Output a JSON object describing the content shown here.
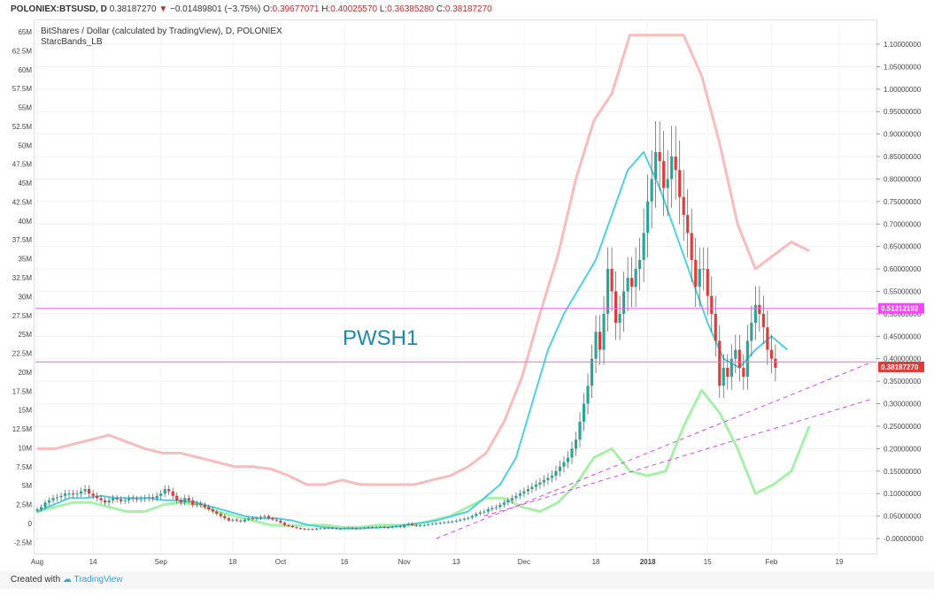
{
  "header": {
    "symbol": "POLONIEX:BTSUSD, D",
    "last": "0.38187270",
    "change": "−0.01489801 (−3.75%)",
    "open_label": "O:",
    "open": "0.39677071",
    "high_label": "H:",
    "high": "0.40025570",
    "low_label": "L:",
    "low": "0.36385280",
    "close_label": "C:",
    "close": "0.38187270"
  },
  "legend": {
    "title": "BitShares / Dollar (calculated by TradingView), D, POLONIEX",
    "indicator": "StarcBands_LB"
  },
  "annotation": "PWSH1",
  "footer": {
    "created_with": "Created with",
    "brand": "TradingView"
  },
  "colors": {
    "up": "#26a69a",
    "down": "#e53935",
    "upper_band": "#f8bcbc",
    "lower_band": "#a7f0a7",
    "center": "#4dd0e1",
    "hline": "#f264f2",
    "trend": "#e040fb",
    "badge_magenta": "#ff40ff",
    "badge_red": "#e53935"
  },
  "chart_data": {
    "type": "candlestick",
    "price_axis_ticks": [
      "1.10000000",
      "1.05000000",
      "1.00000000",
      "0.95000000",
      "0.90000000",
      "0.85000000",
      "0.80000000",
      "0.75000000",
      "0.70000000",
      "0.65000000",
      "0.60000000",
      "0.55000000",
      "0.50000000",
      "0.45000000",
      "0.40000000",
      "0.35000000",
      "0.30000000",
      "0.25000000",
      "0.20000000",
      "0.15000000",
      "0.10000000",
      "0.05000000",
      "-0.00000000"
    ],
    "price_axis_values": [
      1.1,
      1.05,
      1.0,
      0.95,
      0.9,
      0.85,
      0.8,
      0.75,
      0.7,
      0.65,
      0.6,
      0.55,
      0.5,
      0.45,
      0.4,
      0.35,
      0.3,
      0.25,
      0.2,
      0.15,
      0.1,
      0.05,
      0.0
    ],
    "volume_axis_ticks": [
      "65M",
      "62.5M",
      "60M",
      "57.5M",
      "55M",
      "52.5M",
      "50M",
      "47.5M",
      "45M",
      "42.5M",
      "40M",
      "37.5M",
      "35M",
      "32.5M",
      "30M",
      "27.5M",
      "25M",
      "22.5M",
      "20M",
      "17.5M",
      "15M",
      "12.5M",
      "10M",
      "7.5M",
      "5M",
      "2.5M",
      "0",
      "-2.5M"
    ],
    "volume_axis_values": [
      65,
      62.5,
      60,
      57.5,
      55,
      52.5,
      50,
      47.5,
      45,
      42.5,
      40,
      37.5,
      35,
      32.5,
      30,
      27.5,
      25,
      22.5,
      20,
      17.5,
      15,
      12.5,
      10,
      7.5,
      5,
      2.5,
      0,
      -2.5
    ],
    "time_axis": [
      "Aug",
      "14",
      "Sep",
      "18",
      "Oct",
      "16",
      "Nov",
      "13",
      "Dec",
      "18",
      "2018",
      "15",
      "Feb",
      "19"
    ],
    "time_axis_days": [
      0,
      14,
      31,
      49,
      61,
      77,
      92,
      105,
      122,
      140,
      153,
      168,
      184,
      201
    ],
    "price_badges": [
      {
        "label": "0.51212192",
        "value": 0.51212192
      },
      {
        "label": "0.38187270",
        "value": 0.3818727
      }
    ],
    "horizontal_lines": [
      0.512,
      0.393
    ],
    "trendlines": [
      {
        "from": [
          100,
          0.0
        ],
        "to": [
          209,
          0.392
        ]
      },
      {
        "from": [
          112,
          0.05
        ],
        "to": [
          209,
          0.31
        ]
      }
    ],
    "close_series": {
      "start_day": 0,
      "values": [
        0.065,
        0.07,
        0.08,
        0.085,
        0.09,
        0.092,
        0.095,
        0.1,
        0.1,
        0.098,
        0.1,
        0.105,
        0.11,
        0.1,
        0.095,
        0.09,
        0.085,
        0.08,
        0.085,
        0.09,
        0.087,
        0.083,
        0.085,
        0.09,
        0.088,
        0.087,
        0.088,
        0.09,
        0.092,
        0.09,
        0.095,
        0.1,
        0.11,
        0.105,
        0.095,
        0.085,
        0.08,
        0.09,
        0.085,
        0.075,
        0.078,
        0.075,
        0.07,
        0.065,
        0.06,
        0.055,
        0.05,
        0.045,
        0.04,
        0.042,
        0.04,
        0.038,
        0.042,
        0.045,
        0.043,
        0.045,
        0.048,
        0.05,
        0.045,
        0.042,
        0.04,
        0.035,
        0.03,
        0.028,
        0.025,
        0.023,
        0.022,
        0.02,
        0.021,
        0.02,
        0.022,
        0.023,
        0.022,
        0.024,
        0.023,
        0.022,
        0.022,
        0.023,
        0.024,
        0.023,
        0.022,
        0.023,
        0.024,
        0.025,
        0.024,
        0.025,
        0.026,
        0.025,
        0.024,
        0.026,
        0.027,
        0.025,
        0.03,
        0.033,
        0.03,
        0.028,
        0.029,
        0.03,
        0.032,
        0.033,
        0.034,
        0.035,
        0.036,
        0.037,
        0.038,
        0.04,
        0.042,
        0.044,
        0.046,
        0.05,
        0.055,
        0.058,
        0.06,
        0.065,
        0.068,
        0.07,
        0.075,
        0.08,
        0.085,
        0.09,
        0.095,
        0.1,
        0.105,
        0.11,
        0.115,
        0.12,
        0.125,
        0.13,
        0.135,
        0.14,
        0.15,
        0.16,
        0.17,
        0.18,
        0.2,
        0.22,
        0.26,
        0.3,
        0.34,
        0.4,
        0.46,
        0.42,
        0.5,
        0.6,
        0.55,
        0.48,
        0.5,
        0.55,
        0.58,
        0.56,
        0.6,
        0.62,
        0.68,
        0.75,
        0.8,
        0.86,
        0.84,
        0.78,
        0.8,
        0.85,
        0.82,
        0.76,
        0.72,
        0.68,
        0.62,
        0.56,
        0.6,
        0.6,
        0.54,
        0.5,
        0.44,
        0.34,
        0.38,
        0.36,
        0.4,
        0.42,
        0.38,
        0.36,
        0.44,
        0.48,
        0.52,
        0.5,
        0.47,
        0.42,
        0.4,
        0.38
      ]
    },
    "center_line": {
      "start_day": 0,
      "values": [
        0.06,
        0.075,
        0.09,
        0.09,
        0.095,
        0.09,
        0.09,
        0.09,
        0.085,
        0.085,
        0.08,
        0.07,
        0.06,
        0.05,
        0.045,
        0.045,
        0.04,
        0.03,
        0.025,
        0.022,
        0.022,
        0.024,
        0.025,
        0.03,
        0.035,
        0.04,
        0.05,
        0.06,
        0.09,
        0.12,
        0.18,
        0.3,
        0.42,
        0.5,
        0.56,
        0.62,
        0.72,
        0.82,
        0.86,
        0.78,
        0.68,
        0.58,
        0.48,
        0.4,
        0.38,
        0.42,
        0.45,
        0.42
      ],
      "step_days": 4
    },
    "upper_band": {
      "start_day": 0,
      "values": [
        0.2,
        0.2,
        0.21,
        0.22,
        0.23,
        0.215,
        0.2,
        0.19,
        0.19,
        0.18,
        0.17,
        0.16,
        0.16,
        0.155,
        0.14,
        0.12,
        0.12,
        0.13,
        0.12,
        0.12,
        0.12,
        0.12,
        0.13,
        0.14,
        0.16,
        0.19,
        0.26,
        0.36,
        0.5,
        0.63,
        0.8,
        0.93,
        0.99,
        1.12,
        1.12,
        1.12,
        1.12,
        1.03,
        0.88,
        0.7,
        0.6,
        0.63,
        0.66,
        0.64
      ],
      "step_days": 4.5
    },
    "lower_band": {
      "start_day": 0,
      "values": [
        0.06,
        0.07,
        0.08,
        0.08,
        0.07,
        0.06,
        0.06,
        0.075,
        0.08,
        0.075,
        0.06,
        0.05,
        0.04,
        0.03,
        0.028,
        0.03,
        0.03,
        0.025,
        0.025,
        0.03,
        0.03,
        0.03,
        0.04,
        0.05,
        0.07,
        0.09,
        0.09,
        0.07,
        0.06,
        0.08,
        0.12,
        0.18,
        0.2,
        0.15,
        0.14,
        0.15,
        0.25,
        0.33,
        0.28,
        0.2,
        0.1,
        0.12,
        0.15,
        0.25
      ],
      "step_days": 4.5
    }
  }
}
